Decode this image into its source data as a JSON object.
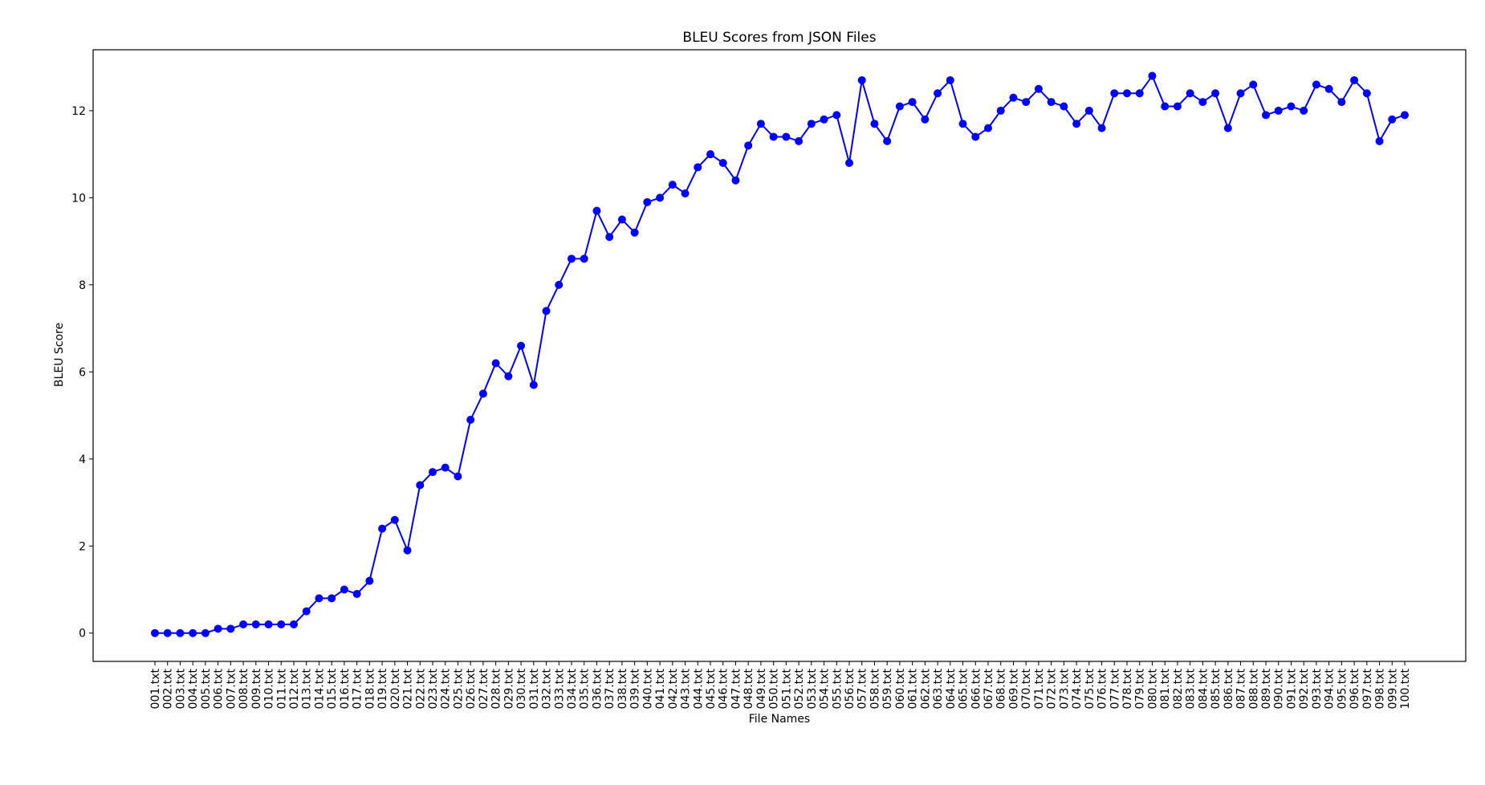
{
  "chart_data": {
    "type": "line",
    "title": "BLEU Scores from JSON Files",
    "xlabel": "File Names",
    "ylabel": "BLEU Score",
    "ylim": [
      -0.65,
      13.4
    ],
    "yticks": [
      0,
      2,
      4,
      6,
      8,
      10,
      12
    ],
    "grid": false,
    "line_color": "#0000ff",
    "marker": "circle",
    "categories": [
      "001.txt",
      "002.txt",
      "003.txt",
      "004.txt",
      "005.txt",
      "006.txt",
      "007.txt",
      "008.txt",
      "009.txt",
      "010.txt",
      "011.txt",
      "012.txt",
      "013.txt",
      "014.txt",
      "015.txt",
      "016.txt",
      "017.txt",
      "018.txt",
      "019.txt",
      "020.txt",
      "021.txt",
      "022.txt",
      "023.txt",
      "024.txt",
      "025.txt",
      "026.txt",
      "027.txt",
      "028.txt",
      "029.txt",
      "030.txt",
      "031.txt",
      "032.txt",
      "033.txt",
      "034.txt",
      "035.txt",
      "036.txt",
      "037.txt",
      "038.txt",
      "039.txt",
      "040.txt",
      "041.txt",
      "042.txt",
      "043.txt",
      "044.txt",
      "045.txt",
      "046.txt",
      "047.txt",
      "048.txt",
      "049.txt",
      "050.txt",
      "051.txt",
      "052.txt",
      "053.txt",
      "054.txt",
      "055.txt",
      "056.txt",
      "057.txt",
      "058.txt",
      "059.txt",
      "060.txt",
      "061.txt",
      "062.txt",
      "063.txt",
      "064.txt",
      "065.txt",
      "066.txt",
      "067.txt",
      "068.txt",
      "069.txt",
      "070.txt",
      "071.txt",
      "072.txt",
      "073.txt",
      "074.txt",
      "075.txt",
      "076.txt",
      "077.txt",
      "078.txt",
      "079.txt",
      "080.txt",
      "081.txt",
      "082.txt",
      "083.txt",
      "084.txt",
      "085.txt",
      "086.txt",
      "087.txt",
      "088.txt",
      "089.txt",
      "090.txt",
      "091.txt",
      "092.txt",
      "093.txt",
      "094.txt",
      "095.txt",
      "096.txt",
      "097.txt",
      "098.txt",
      "099.txt",
      "100.txt"
    ],
    "values": [
      0.0,
      0.0,
      0.0,
      0.0,
      0.0,
      0.1,
      0.1,
      0.2,
      0.2,
      0.2,
      0.2,
      0.2,
      0.5,
      0.8,
      0.8,
      1.0,
      0.9,
      1.2,
      2.4,
      2.6,
      1.9,
      3.4,
      3.7,
      3.8,
      3.6,
      4.9,
      5.5,
      6.2,
      5.9,
      6.6,
      5.7,
      7.4,
      8.0,
      8.6,
      8.6,
      9.7,
      9.1,
      9.5,
      9.2,
      9.9,
      10.0,
      10.3,
      10.1,
      10.7,
      11.0,
      10.8,
      10.4,
      11.2,
      11.7,
      11.4,
      11.4,
      11.3,
      11.7,
      11.8,
      11.9,
      10.8,
      12.7,
      11.7,
      11.3,
      12.1,
      12.2,
      11.8,
      12.4,
      12.7,
      11.7,
      11.4,
      11.6,
      12.0,
      12.3,
      12.2,
      12.5,
      12.2,
      12.1,
      11.7,
      12.0,
      11.6,
      12.4,
      12.4,
      12.4,
      12.8,
      12.1,
      12.1,
      12.4,
      12.2,
      12.4,
      11.6,
      12.4,
      12.6,
      11.9,
      12.0,
      12.1,
      12.0,
      12.6,
      12.5,
      12.2,
      12.7,
      12.4,
      11.3,
      11.8,
      11.9
    ]
  }
}
